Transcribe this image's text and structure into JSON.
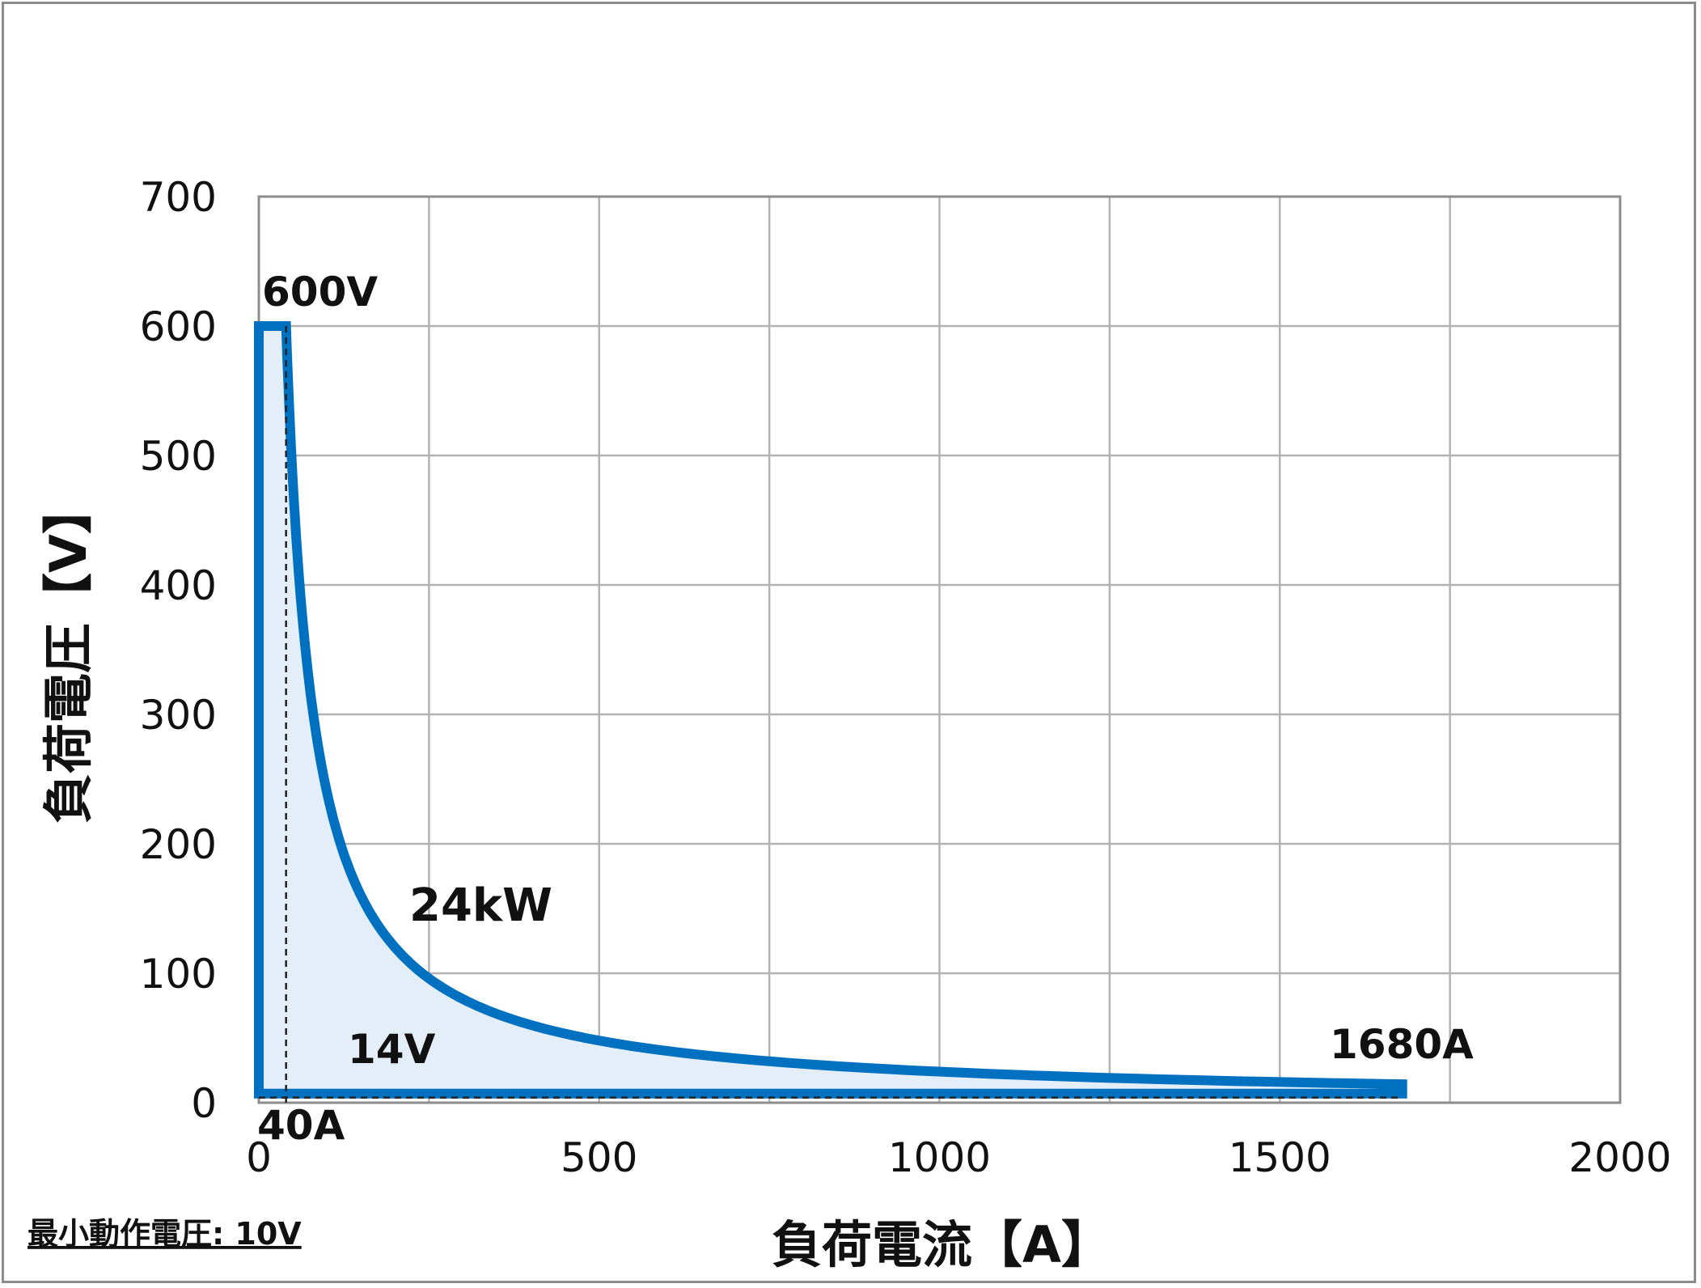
{
  "chart_data": {
    "type": "line",
    "title": "",
    "xlabel": "負荷電流【A】",
    "ylabel": "負荷電圧【V】",
    "xlim": [
      0,
      2000
    ],
    "ylim": [
      0,
      700
    ],
    "xticks": [
      0,
      500,
      1000,
      1500,
      2000
    ],
    "yticks": [
      0,
      100,
      200,
      300,
      400,
      500,
      600,
      700
    ],
    "xtick_labels": [
      "0",
      "500",
      "1000",
      "1500",
      "2000"
    ],
    "ytick_labels": [
      "0",
      "100",
      "200",
      "300",
      "400",
      "500",
      "600",
      "700"
    ],
    "grid": true,
    "legend": "none",
    "line_color": "#0070C0",
    "fill_color": "#E3EEF8",
    "operating_region": {
      "max_voltage_V": 600,
      "max_current_A": 1680,
      "max_power_kW": 24,
      "boundary": [
        {
          "current": 0,
          "voltage": 600
        },
        {
          "current": 40,
          "voltage": 600
        },
        {
          "current": 1680,
          "voltage": 14.3
        },
        {
          "current": 1680,
          "voltage": 0
        },
        {
          "current": 0,
          "voltage": 0
        }
      ]
    },
    "reference_lines": [
      {
        "orientation": "vertical",
        "current": 40
      },
      {
        "orientation": "horizontal",
        "voltage": 14
      }
    ],
    "annotations": {
      "max_voltage": "600V",
      "power": "24kW",
      "low_voltage": "14V",
      "min_current": "40A",
      "max_current": "1680A"
    },
    "note": "最小動作電圧: 10V"
  }
}
